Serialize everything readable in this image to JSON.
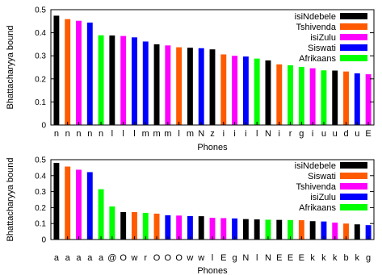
{
  "chart_data": [
    {
      "type": "bar",
      "xlabel": "Phones",
      "ylabel": "Bhattacharyya bound",
      "ylim": [
        0,
        0.5
      ],
      "yticks": [
        "0",
        "0.1",
        "0.2",
        "0.3",
        "0.4",
        "0.5"
      ],
      "legend_position": "top-right",
      "legend": [
        {
          "name": "isiNdebele",
          "color": "#000000"
        },
        {
          "name": "Tshivenda",
          "color": "#ff5a00"
        },
        {
          "name": "isiZulu",
          "color": "#ff00ff"
        },
        {
          "name": "Siswati",
          "color": "#0000ff"
        },
        {
          "name": "Afrikaans",
          "color": "#00ff00"
        }
      ],
      "categories": [
        "n",
        "n",
        "n",
        "n",
        "n",
        "l",
        "l",
        "l",
        "m",
        "m",
        "m",
        "l",
        "m",
        "N",
        "z",
        "i",
        "i",
        "i",
        "l",
        "N",
        "i",
        "r",
        "g",
        "i",
        "u",
        "u",
        "d",
        "u",
        "E"
      ],
      "values": [
        0.474,
        0.459,
        0.452,
        0.444,
        0.389,
        0.388,
        0.386,
        0.38,
        0.362,
        0.35,
        0.345,
        0.337,
        0.335,
        0.333,
        0.328,
        0.306,
        0.3,
        0.297,
        0.288,
        0.28,
        0.263,
        0.259,
        0.252,
        0.246,
        0.237,
        0.236,
        0.232,
        0.224,
        0.22
      ],
      "bar_languages": [
        "isiNdebele",
        "Tshivenda",
        "isiZulu",
        "Siswati",
        "Afrikaans",
        "isiNdebele",
        "isiZulu",
        "Siswati",
        "Siswati",
        "isiNdebele",
        "isiZulu",
        "Tshivenda",
        "isiNdebele",
        "Siswati",
        "isiNdebele",
        "Tshivenda",
        "isiZulu",
        "Siswati",
        "Afrikaans",
        "isiNdebele",
        "Tshivenda",
        "Afrikaans",
        "Afrikaans",
        "isiZulu",
        "Afrikaans",
        "isiNdebele",
        "Tshivenda",
        "Siswati",
        "isiZulu"
      ]
    },
    {
      "type": "bar",
      "xlabel": "Phones",
      "ylabel": "Bhattacharyya bound",
      "ylim": [
        0,
        0.5
      ],
      "yticks": [
        "0",
        "0.1",
        "0.2",
        "0.3",
        "0.4",
        "0.5"
      ],
      "legend_position": "top-right",
      "legend": [
        {
          "name": "isiNdebele",
          "color": "#000000"
        },
        {
          "name": "Siswati",
          "color": "#ff5a00"
        },
        {
          "name": "Tshivenda",
          "color": "#ff00ff"
        },
        {
          "name": "isiZulu",
          "color": "#0000ff"
        },
        {
          "name": "Afrikaans",
          "color": "#00ff00"
        }
      ],
      "categories": [
        "a",
        "a",
        "a",
        "a",
        "a",
        "@",
        "O",
        "w",
        "r",
        "O",
        "O",
        "O",
        "w",
        "w",
        "l",
        "E",
        "g",
        "N",
        "l",
        "N",
        "E",
        "E",
        "E",
        "k",
        "k",
        "k",
        "b",
        "k",
        "g"
      ],
      "values": [
        0.48,
        0.457,
        0.437,
        0.422,
        0.315,
        0.207,
        0.172,
        0.172,
        0.167,
        0.162,
        0.152,
        0.15,
        0.147,
        0.146,
        0.136,
        0.134,
        0.132,
        0.128,
        0.126,
        0.124,
        0.123,
        0.122,
        0.121,
        0.115,
        0.113,
        0.106,
        0.1,
        0.095,
        0.09
      ],
      "bar_languages": [
        "isiNdebele",
        "Siswati",
        "Tshivenda",
        "isiZulu",
        "Afrikaans",
        "Afrikaans",
        "isiNdebele",
        "Siswati",
        "Afrikaans",
        "Siswati",
        "isiZulu",
        "Tshivenda",
        "isiZulu",
        "isiNdebele",
        "Tshivenda",
        "Tshivenda",
        "isiZulu",
        "isiNdebele",
        "isiNdebele",
        "Afrikaans",
        "isiNdebele",
        "Afrikaans",
        "Siswati",
        "isiNdebele",
        "isiZulu",
        "Tshivenda",
        "Siswati",
        "isiNdebele",
        "isiZulu"
      ]
    }
  ]
}
